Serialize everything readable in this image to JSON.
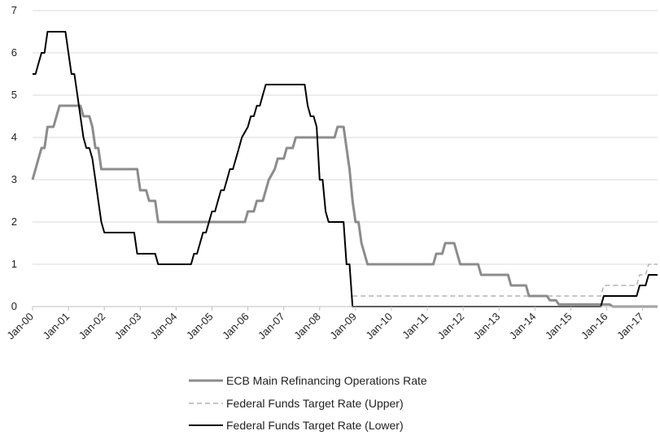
{
  "chart_data": {
    "type": "line",
    "title": "",
    "xlabel": "",
    "ylabel": "",
    "ylim": [
      0,
      7
    ],
    "yticks": [
      0,
      1,
      2,
      3,
      4,
      5,
      6,
      7
    ],
    "xlim": [
      "2000-01",
      "2017-06"
    ],
    "xtick_labels": [
      "Jan-00",
      "Jan-01",
      "Jan-02",
      "Jan-03",
      "Jan-04",
      "Jan-05",
      "Jan-06",
      "Jan-07",
      "Jan-08",
      "Jan-09",
      "Jan-10",
      "Jan-11",
      "Jan-12",
      "Jan-13",
      "Jan-14",
      "Jan-15",
      "Jan-16",
      "Jan-17"
    ],
    "xtick_dates": [
      "2000-01",
      "2001-01",
      "2002-01",
      "2003-01",
      "2004-01",
      "2005-01",
      "2006-01",
      "2007-01",
      "2008-01",
      "2009-01",
      "2010-01",
      "2011-01",
      "2012-01",
      "2013-01",
      "2014-01",
      "2015-01",
      "2016-01",
      "2017-01"
    ],
    "grid": "horizontal",
    "legend_position": "bottom",
    "series": [
      {
        "name": "ECB  Main Refinancing Operations Rate",
        "color": "#8c8c8c",
        "style": "solid",
        "points": [
          [
            "2000-01",
            3.0
          ],
          [
            "2000-02",
            3.25
          ],
          [
            "2000-03",
            3.5
          ],
          [
            "2000-04",
            3.75
          ],
          [
            "2000-05",
            3.75
          ],
          [
            "2000-06",
            4.25
          ],
          [
            "2000-08",
            4.25
          ],
          [
            "2000-09",
            4.5
          ],
          [
            "2000-10",
            4.75
          ],
          [
            "2001-05",
            4.75
          ],
          [
            "2001-06",
            4.5
          ],
          [
            "2001-08",
            4.5
          ],
          [
            "2001-09",
            4.25
          ],
          [
            "2001-10",
            3.75
          ],
          [
            "2001-11",
            3.75
          ],
          [
            "2001-12",
            3.25
          ],
          [
            "2002-12",
            3.25
          ],
          [
            "2003-01",
            2.75
          ],
          [
            "2003-03",
            2.75
          ],
          [
            "2003-04",
            2.5
          ],
          [
            "2003-06",
            2.5
          ],
          [
            "2003-07",
            2.0
          ],
          [
            "2005-12",
            2.0
          ],
          [
            "2006-01",
            2.25
          ],
          [
            "2006-03",
            2.25
          ],
          [
            "2006-04",
            2.5
          ],
          [
            "2006-06",
            2.5
          ],
          [
            "2006-07",
            2.75
          ],
          [
            "2006-08",
            3.0
          ],
          [
            "2006-10",
            3.25
          ],
          [
            "2006-11",
            3.5
          ],
          [
            "2007-01",
            3.5
          ],
          [
            "2007-02",
            3.75
          ],
          [
            "2007-04",
            3.75
          ],
          [
            "2007-05",
            4.0
          ],
          [
            "2008-06",
            4.0
          ],
          [
            "2008-07",
            4.25
          ],
          [
            "2008-09",
            4.25
          ],
          [
            "2008-10",
            3.75
          ],
          [
            "2008-11",
            3.25
          ],
          [
            "2008-12",
            2.5
          ],
          [
            "2009-01",
            2.0
          ],
          [
            "2009-02",
            2.0
          ],
          [
            "2009-03",
            1.5
          ],
          [
            "2009-04",
            1.25
          ],
          [
            "2009-05",
            1.0
          ],
          [
            "2011-03",
            1.0
          ],
          [
            "2011-04",
            1.25
          ],
          [
            "2011-06",
            1.25
          ],
          [
            "2011-07",
            1.5
          ],
          [
            "2011-10",
            1.5
          ],
          [
            "2011-11",
            1.25
          ],
          [
            "2011-12",
            1.0
          ],
          [
            "2012-06",
            1.0
          ],
          [
            "2012-07",
            0.75
          ],
          [
            "2013-04",
            0.75
          ],
          [
            "2013-05",
            0.5
          ],
          [
            "2013-10",
            0.5
          ],
          [
            "2013-11",
            0.25
          ],
          [
            "2014-05",
            0.25
          ],
          [
            "2014-06",
            0.15
          ],
          [
            "2014-08",
            0.15
          ],
          [
            "2014-09",
            0.05
          ],
          [
            "2016-02",
            0.05
          ],
          [
            "2016-03",
            0.0
          ],
          [
            "2017-06",
            0.0
          ]
        ]
      },
      {
        "name": "Federal Funds Target Rate (Upper)",
        "color": "#b4b4b4",
        "style": "dashed",
        "points": [
          [
            "2008-12",
            0.25
          ],
          [
            "2015-11",
            0.25
          ],
          [
            "2015-12",
            0.5
          ],
          [
            "2016-11",
            0.5
          ],
          [
            "2016-12",
            0.75
          ],
          [
            "2017-02",
            0.75
          ],
          [
            "2017-03",
            1.0
          ],
          [
            "2017-06",
            1.0
          ]
        ]
      },
      {
        "name": "Federal Funds Target Rate (Lower)",
        "color": "#000000",
        "style": "solid",
        "points": [
          [
            "2000-01",
            5.5
          ],
          [
            "2000-02",
            5.5
          ],
          [
            "2000-03",
            5.75
          ],
          [
            "2000-04",
            6.0
          ],
          [
            "2000-05",
            6.0
          ],
          [
            "2000-06",
            6.5
          ],
          [
            "2000-12",
            6.5
          ],
          [
            "2001-01",
            6.0
          ],
          [
            "2001-02",
            5.5
          ],
          [
            "2001-03",
            5.5
          ],
          [
            "2001-04",
            5.0
          ],
          [
            "2001-05",
            4.5
          ],
          [
            "2001-06",
            4.0
          ],
          [
            "2001-07",
            3.75
          ],
          [
            "2001-08",
            3.75
          ],
          [
            "2001-09",
            3.5
          ],
          [
            "2001-10",
            3.0
          ],
          [
            "2001-11",
            2.5
          ],
          [
            "2001-12",
            2.0
          ],
          [
            "2002-01",
            1.75
          ],
          [
            "2002-11",
            1.75
          ],
          [
            "2002-12",
            1.25
          ],
          [
            "2003-06",
            1.25
          ],
          [
            "2003-07",
            1.0
          ],
          [
            "2004-06",
            1.0
          ],
          [
            "2004-07",
            1.25
          ],
          [
            "2004-08",
            1.25
          ],
          [
            "2004-09",
            1.5
          ],
          [
            "2004-10",
            1.75
          ],
          [
            "2004-11",
            1.75
          ],
          [
            "2004-12",
            2.0
          ],
          [
            "2005-01",
            2.25
          ],
          [
            "2005-02",
            2.25
          ],
          [
            "2005-03",
            2.5
          ],
          [
            "2005-04",
            2.75
          ],
          [
            "2005-05",
            2.75
          ],
          [
            "2005-06",
            3.0
          ],
          [
            "2005-07",
            3.25
          ],
          [
            "2005-08",
            3.25
          ],
          [
            "2005-09",
            3.5
          ],
          [
            "2005-10",
            3.75
          ],
          [
            "2005-11",
            4.0
          ],
          [
            "2006-01",
            4.25
          ],
          [
            "2006-02",
            4.5
          ],
          [
            "2006-03",
            4.5
          ],
          [
            "2006-04",
            4.75
          ],
          [
            "2006-05",
            4.75
          ],
          [
            "2006-06",
            5.0
          ],
          [
            "2006-07",
            5.25
          ],
          [
            "2007-08",
            5.25
          ],
          [
            "2007-09",
            4.75
          ],
          [
            "2007-10",
            4.5
          ],
          [
            "2007-11",
            4.5
          ],
          [
            "2007-12",
            4.25
          ],
          [
            "2008-01",
            3.0
          ],
          [
            "2008-02",
            3.0
          ],
          [
            "2008-03",
            2.25
          ],
          [
            "2008-04",
            2.0
          ],
          [
            "2008-09",
            2.0
          ],
          [
            "2008-10",
            1.0
          ],
          [
            "2008-11",
            1.0
          ],
          [
            "2008-12",
            0.0
          ],
          [
            "2015-11",
            0.0
          ],
          [
            "2015-12",
            0.25
          ],
          [
            "2016-11",
            0.25
          ],
          [
            "2016-12",
            0.5
          ],
          [
            "2017-02",
            0.5
          ],
          [
            "2017-03",
            0.75
          ],
          [
            "2017-06",
            0.75
          ]
        ]
      }
    ]
  }
}
